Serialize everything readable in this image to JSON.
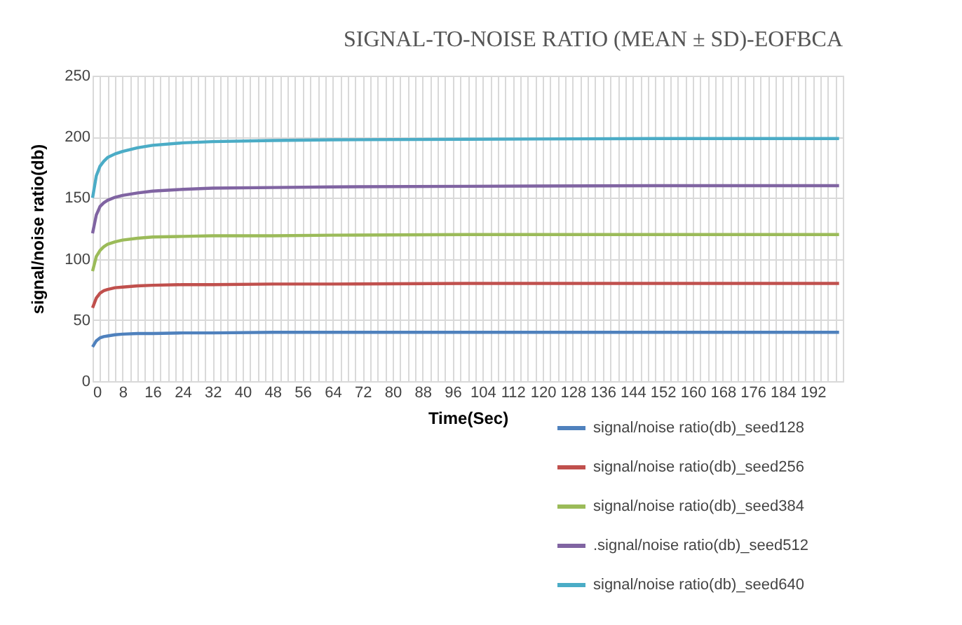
{
  "chart_data": {
    "type": "line",
    "title": "SIGNAL-TO-NOISE RATIO (MEAN ± SD)-EOFBCA",
    "xlabel": "Time(Sec)",
    "ylabel": "signal/noise ratio(db)",
    "x": [
      0,
      1,
      2,
      3,
      4,
      6,
      8,
      12,
      16,
      24,
      32,
      48,
      64,
      100,
      150,
      199
    ],
    "series": [
      {
        "name": "signal/noise ratio(db)_seed128",
        "color": "#4f81bd",
        "values": [
          28,
          33,
          35.5,
          36.5,
          37,
          38,
          38.5,
          39,
          39,
          39.5,
          39.5,
          40,
          40,
          40,
          40,
          40
        ]
      },
      {
        "name": "signal/noise ratio(db)_seed256",
        "color": "#c0504d",
        "values": [
          60,
          68,
          72,
          74,
          75,
          76.5,
          77,
          78,
          78.5,
          79,
          79,
          79.5,
          79.5,
          80,
          80,
          80
        ]
      },
      {
        "name": "signal/noise ratio(db)_seed384",
        "color": "#9bbb59",
        "values": [
          90,
          102,
          107,
          110,
          112,
          114,
          115.5,
          117,
          118,
          118.5,
          119,
          119,
          119.5,
          120,
          120,
          120
        ]
      },
      {
        "name": ".signal/noise ratio(db)_seed512",
        "color": "#8064a2",
        "values": [
          121,
          136,
          143,
          146,
          148,
          150.5,
          152,
          154,
          155.5,
          157,
          158,
          158.5,
          159,
          159.5,
          160,
          160
        ]
      },
      {
        "name": "signal/noise ratio(db)_seed640",
        "color": "#4bacc6",
        "values": [
          150,
          168,
          176,
          180,
          183,
          186,
          188,
          191,
          193,
          195,
          196,
          197,
          197.5,
          198,
          198.5,
          198.5
        ]
      }
    ],
    "xlim": [
      0,
      200
    ],
    "ylim": [
      0,
      250
    ],
    "yticks": [
      0,
      50,
      100,
      150,
      200,
      250
    ],
    "xticks": [
      0,
      {
        "value": 2,
        "label": null
      },
      {
        "value": 4,
        "label": null
      },
      {
        "value": 6,
        "label": null
      },
      8,
      {
        "value": 10,
        "label": null
      },
      {
        "value": 12,
        "label": null
      },
      {
        "value": 14,
        "label": null
      },
      16,
      {
        "value": 18,
        "label": null
      },
      {
        "value": 20,
        "label": null
      },
      {
        "value": 22,
        "label": null
      },
      24,
      {
        "value": 26,
        "label": null
      },
      {
        "value": 28,
        "label": null
      },
      {
        "value": 30,
        "label": null
      },
      32,
      {
        "value": 34,
        "label": null
      },
      {
        "value": 36,
        "label": null
      },
      {
        "value": 38,
        "label": null
      },
      40,
      {
        "value": 42,
        "label": null
      },
      {
        "value": 44,
        "label": null
      },
      {
        "value": 46,
        "label": null
      },
      48,
      {
        "value": 50,
        "label": null
      },
      {
        "value": 52,
        "label": null
      },
      {
        "value": 54,
        "label": null
      },
      56,
      {
        "value": 58,
        "label": null
      },
      {
        "value": 60,
        "label": null
      },
      {
        "value": 62,
        "label": null
      },
      64,
      {
        "value": 66,
        "label": null
      },
      {
        "value": 68,
        "label": null
      },
      {
        "value": 70,
        "label": null
      },
      72,
      {
        "value": 74,
        "label": null
      },
      {
        "value": 76,
        "label": null
      },
      {
        "value": 78,
        "label": null
      },
      80,
      {
        "value": 82,
        "label": null
      },
      {
        "value": 84,
        "label": null
      },
      {
        "value": 86,
        "label": null
      },
      88,
      {
        "value": 90,
        "label": null
      },
      {
        "value": 92,
        "label": null
      },
      {
        "value": 94,
        "label": null
      },
      96,
      {
        "value": 98,
        "label": null
      },
      {
        "value": 100,
        "label": null
      },
      {
        "value": 102,
        "label": null
      },
      104,
      {
        "value": 106,
        "label": null
      },
      {
        "value": 108,
        "label": null
      },
      {
        "value": 110,
        "label": null
      },
      112,
      {
        "value": 114,
        "label": null
      },
      {
        "value": 116,
        "label": null
      },
      {
        "value": 118,
        "label": null
      },
      120,
      {
        "value": 122,
        "label": null
      },
      {
        "value": 124,
        "label": null
      },
      {
        "value": 126,
        "label": null
      },
      128,
      {
        "value": 130,
        "label": null
      },
      {
        "value": 132,
        "label": null
      },
      {
        "value": 134,
        "label": null
      },
      136,
      {
        "value": 138,
        "label": null
      },
      {
        "value": 140,
        "label": null
      },
      {
        "value": 142,
        "label": null
      },
      144,
      {
        "value": 146,
        "label": null
      },
      {
        "value": 148,
        "label": null
      },
      {
        "value": 150,
        "label": null
      },
      152,
      {
        "value": 154,
        "label": null
      },
      {
        "value": 156,
        "label": null
      },
      {
        "value": 158,
        "label": null
      },
      160,
      {
        "value": 162,
        "label": null
      },
      {
        "value": 164,
        "label": null
      },
      {
        "value": 166,
        "label": null
      },
      168,
      {
        "value": 170,
        "label": null
      },
      {
        "value": 172,
        "label": null
      },
      {
        "value": 174,
        "label": null
      },
      176,
      {
        "value": 178,
        "label": null
      },
      {
        "value": 180,
        "label": null
      },
      {
        "value": 182,
        "label": null
      },
      184,
      {
        "value": 186,
        "label": null
      },
      {
        "value": 188,
        "label": null
      },
      {
        "value": 190,
        "label": null
      },
      192,
      {
        "value": 194,
        "label": null
      },
      {
        "value": 196,
        "label": null
      },
      {
        "value": 198,
        "label": null
      },
      {
        "value": 200,
        "label": null
      }
    ],
    "grid": true,
    "legend": "bottom right",
    "marker": "none",
    "line_style": "solid"
  }
}
